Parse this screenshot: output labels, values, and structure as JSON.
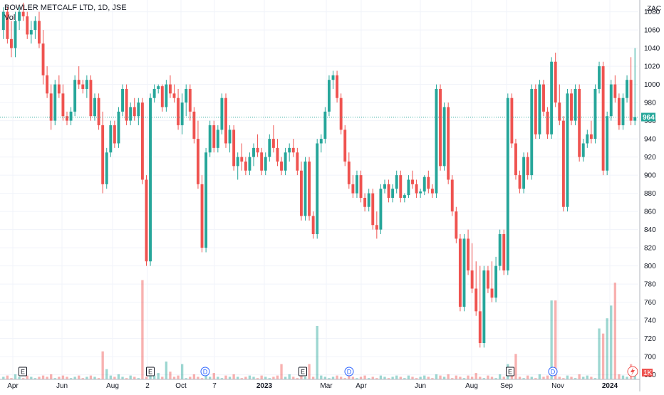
{
  "header": {
    "title": "BOWLER METCALF LTD, 1D, JSE",
    "volume_label": "Vol",
    "currency": "ZAC",
    "volume_scale": "1K"
  },
  "colors": {
    "up": "#26a69a",
    "down": "#ef5350",
    "grid": "#f0f3fa",
    "axis": "#b2b5be"
  },
  "chart_data": {
    "type": "candlestick",
    "title": "BOWLER METCALF LTD, 1D, JSE",
    "ylim": [
      675,
      1093
    ],
    "yticks": [
      680,
      700,
      720,
      740,
      760,
      780,
      800,
      820,
      840,
      860,
      880,
      900,
      920,
      940,
      960,
      980,
      1000,
      1020,
      1040,
      1060,
      1080
    ],
    "xticks": [
      {
        "label": "Apr",
        "bold": false
      },
      {
        "label": "Jun",
        "bold": false
      },
      {
        "label": "Aug",
        "bold": false
      },
      {
        "label": "2",
        "bold": false
      },
      {
        "label": "Oct",
        "bold": false
      },
      {
        "label": "7",
        "bold": false
      },
      {
        "label": "2023",
        "bold": true
      },
      {
        "label": "Mar",
        "bold": false
      },
      {
        "label": "Apr",
        "bold": false
      },
      {
        "label": "Jun",
        "bold": false
      },
      {
        "label": "Aug",
        "bold": false
      },
      {
        "label": "Sep",
        "bold": false
      },
      {
        "label": "Nov",
        "bold": false
      },
      {
        "label": "2024",
        "bold": true
      }
    ],
    "last_price": 964,
    "event_markers": [
      "E",
      "E",
      "D",
      "E",
      "D",
      "E",
      "D"
    ],
    "candles": [
      [
        1060,
        1085,
        1050,
        1080
      ],
      [
        1080,
        1085,
        1045,
        1050
      ],
      [
        1050,
        1070,
        1030,
        1040
      ],
      [
        1040,
        1080,
        1030,
        1070
      ],
      [
        1070,
        1085,
        1060,
        1080
      ],
      [
        1080,
        1090,
        1070,
        1075
      ],
      [
        1075,
        1080,
        1050,
        1055
      ],
      [
        1055,
        1070,
        1045,
        1060
      ],
      [
        1060,
        1075,
        1050,
        1070
      ],
      [
        1070,
        1080,
        1040,
        1045
      ],
      [
        1045,
        1060,
        1000,
        1010
      ],
      [
        1010,
        1020,
        985,
        990
      ],
      [
        990,
        1000,
        950,
        960
      ],
      [
        960,
        1005,
        955,
        1000
      ],
      [
        1000,
        1010,
        985,
        990
      ],
      [
        990,
        1000,
        960,
        965
      ],
      [
        965,
        970,
        955,
        960
      ],
      [
        960,
        975,
        955,
        970
      ],
      [
        970,
        1010,
        965,
        1005
      ],
      [
        1005,
        1020,
        995,
        1000
      ],
      [
        1000,
        1005,
        990,
        995
      ],
      [
        995,
        1010,
        985,
        1005
      ],
      [
        1005,
        1010,
        960,
        965
      ],
      [
        965,
        990,
        960,
        985
      ],
      [
        985,
        990,
        950,
        955
      ],
      [
        955,
        970,
        880,
        890
      ],
      [
        890,
        930,
        885,
        925
      ],
      [
        925,
        960,
        920,
        955
      ],
      [
        955,
        960,
        930,
        935
      ],
      [
        935,
        975,
        930,
        970
      ],
      [
        970,
        1000,
        965,
        995
      ],
      [
        995,
        1000,
        955,
        960
      ],
      [
        960,
        980,
        955,
        975
      ],
      [
        975,
        985,
        960,
        965
      ],
      [
        965,
        985,
        955,
        980
      ],
      [
        980,
        985,
        890,
        895
      ],
      [
        895,
        900,
        800,
        805
      ],
      [
        805,
        990,
        800,
        985
      ],
      [
        985,
        1000,
        980,
        995
      ],
      [
        995,
        1000,
        990,
        998
      ],
      [
        998,
        1000,
        970,
        975
      ],
      [
        975,
        1005,
        970,
        1000
      ],
      [
        1000,
        1010,
        985,
        990
      ],
      [
        990,
        1000,
        980,
        985
      ],
      [
        985,
        995,
        950,
        955
      ],
      [
        955,
        990,
        945,
        980
      ],
      [
        980,
        1000,
        965,
        995
      ],
      [
        995,
        1000,
        960,
        970
      ],
      [
        970,
        975,
        935,
        940
      ],
      [
        940,
        960,
        885,
        890
      ],
      [
        890,
        900,
        815,
        820
      ],
      [
        820,
        930,
        815,
        925
      ],
      [
        925,
        960,
        920,
        955
      ],
      [
        955,
        960,
        925,
        930
      ],
      [
        930,
        955,
        925,
        950
      ],
      [
        950,
        990,
        945,
        985
      ],
      [
        985,
        990,
        930,
        935
      ],
      [
        935,
        955,
        925,
        950
      ],
      [
        950,
        955,
        905,
        910
      ],
      [
        910,
        925,
        895,
        920
      ],
      [
        920,
        935,
        905,
        915
      ],
      [
        915,
        920,
        900,
        905
      ],
      [
        905,
        925,
        900,
        920
      ],
      [
        920,
        935,
        910,
        930
      ],
      [
        930,
        945,
        920,
        925
      ],
      [
        925,
        930,
        900,
        905
      ],
      [
        905,
        925,
        900,
        920
      ],
      [
        920,
        945,
        915,
        940
      ],
      [
        940,
        955,
        925,
        930
      ],
      [
        930,
        940,
        910,
        915
      ],
      [
        915,
        920,
        900,
        905
      ],
      [
        905,
        930,
        900,
        925
      ],
      [
        925,
        935,
        915,
        930
      ],
      [
        930,
        940,
        920,
        925
      ],
      [
        925,
        930,
        900,
        905
      ],
      [
        905,
        915,
        850,
        855
      ],
      [
        855,
        920,
        850,
        915
      ],
      [
        915,
        920,
        850,
        855
      ],
      [
        855,
        860,
        830,
        835
      ],
      [
        835,
        940,
        830,
        935
      ],
      [
        935,
        945,
        925,
        940
      ],
      [
        940,
        975,
        935,
        970
      ],
      [
        970,
        1010,
        965,
        1005
      ],
      [
        1005,
        1015,
        995,
        1010
      ],
      [
        1010,
        1015,
        980,
        985
      ],
      [
        985,
        990,
        945,
        950
      ],
      [
        950,
        955,
        910,
        915
      ],
      [
        915,
        925,
        885,
        890
      ],
      [
        890,
        900,
        875,
        880
      ],
      [
        880,
        905,
        875,
        900
      ],
      [
        900,
        905,
        870,
        875
      ],
      [
        875,
        880,
        860,
        865
      ],
      [
        865,
        885,
        860,
        880
      ],
      [
        880,
        885,
        840,
        845
      ],
      [
        845,
        860,
        830,
        840
      ],
      [
        840,
        890,
        835,
        885
      ],
      [
        885,
        895,
        880,
        890
      ],
      [
        890,
        895,
        870,
        875
      ],
      [
        875,
        890,
        870,
        885
      ],
      [
        885,
        905,
        880,
        900
      ],
      [
        900,
        905,
        870,
        875
      ],
      [
        875,
        880,
        870,
        878
      ],
      [
        878,
        900,
        875,
        895
      ],
      [
        895,
        905,
        885,
        890
      ],
      [
        890,
        895,
        875,
        880
      ],
      [
        880,
        885,
        875,
        882
      ],
      [
        882,
        900,
        878,
        898
      ],
      [
        898,
        905,
        880,
        885
      ],
      [
        885,
        890,
        875,
        880
      ],
      [
        880,
        1000,
        875,
        995
      ],
      [
        995,
        1000,
        905,
        910
      ],
      [
        910,
        980,
        905,
        975
      ],
      [
        975,
        980,
        890,
        895
      ],
      [
        895,
        900,
        855,
        860
      ],
      [
        860,
        865,
        825,
        830
      ],
      [
        830,
        835,
        750,
        755
      ],
      [
        755,
        835,
        750,
        830
      ],
      [
        830,
        840,
        790,
        795
      ],
      [
        795,
        825,
        770,
        775
      ],
      [
        775,
        805,
        745,
        750
      ],
      [
        750,
        800,
        710,
        715
      ],
      [
        715,
        800,
        710,
        795
      ],
      [
        795,
        800,
        770,
        775
      ],
      [
        775,
        805,
        760,
        765
      ],
      [
        765,
        810,
        760,
        800
      ],
      [
        800,
        840,
        795,
        835
      ],
      [
        835,
        840,
        790,
        795
      ],
      [
        795,
        990,
        790,
        985
      ],
      [
        985,
        990,
        930,
        935
      ],
      [
        935,
        940,
        895,
        900
      ],
      [
        900,
        905,
        880,
        885
      ],
      [
        885,
        925,
        880,
        920
      ],
      [
        920,
        925,
        895,
        900
      ],
      [
        900,
        1000,
        895,
        995
      ],
      [
        995,
        1000,
        940,
        945
      ],
      [
        945,
        1005,
        940,
        1000
      ],
      [
        1000,
        1005,
        965,
        970
      ],
      [
        970,
        975,
        940,
        945
      ],
      [
        945,
        1030,
        940,
        1025
      ],
      [
        1025,
        1035,
        975,
        980
      ],
      [
        980,
        1000,
        955,
        960
      ],
      [
        960,
        965,
        860,
        865
      ],
      [
        865,
        995,
        860,
        990
      ],
      [
        990,
        995,
        955,
        960
      ],
      [
        960,
        1000,
        955,
        995
      ],
      [
        995,
        1000,
        915,
        920
      ],
      [
        920,
        940,
        915,
        935
      ],
      [
        935,
        950,
        930,
        945
      ],
      [
        945,
        960,
        935,
        940
      ],
      [
        940,
        1000,
        935,
        995
      ],
      [
        995,
        1025,
        990,
        1020
      ],
      [
        1020,
        1025,
        900,
        905
      ],
      [
        905,
        970,
        900,
        965
      ],
      [
        965,
        1005,
        960,
        1000
      ],
      [
        1000,
        1010,
        980,
        985
      ],
      [
        985,
        990,
        950,
        955
      ],
      [
        955,
        990,
        950,
        985
      ],
      [
        985,
        1010,
        980,
        1005
      ],
      [
        1005,
        1030,
        955,
        960
      ],
      [
        960,
        1040,
        955,
        964
      ]
    ],
    "volumes": [
      2,
      3,
      1,
      4,
      2,
      1,
      3,
      2,
      1,
      2,
      3,
      2,
      4,
      1,
      2,
      3,
      2,
      1,
      2,
      3,
      1,
      2,
      3,
      2,
      1,
      22,
      8,
      3,
      2,
      4,
      2,
      1,
      3,
      2,
      1,
      78,
      2,
      8,
      3,
      5,
      2,
      14,
      6,
      2,
      3,
      12,
      1,
      2,
      4,
      2,
      1,
      3,
      2,
      5,
      2,
      1,
      3,
      2,
      4,
      2,
      1,
      2,
      3,
      2,
      1,
      3,
      2,
      1,
      2,
      3,
      12,
      2,
      4,
      2,
      1,
      3,
      2,
      12,
      2,
      42,
      3,
      2,
      1,
      2,
      3,
      2,
      1,
      3,
      2,
      1,
      2,
      3,
      1,
      2,
      1,
      3,
      2,
      1,
      2,
      3,
      2,
      1,
      3,
      2,
      1,
      2,
      3,
      2,
      1,
      4,
      3,
      2,
      4,
      1,
      3,
      2,
      1,
      3,
      2,
      5,
      2,
      1,
      3,
      2,
      1,
      4,
      2,
      12,
      3,
      20,
      2,
      1,
      3,
      2,
      1,
      4,
      2,
      3,
      62,
      62,
      2,
      1,
      3,
      2,
      1,
      4,
      2,
      3,
      2,
      1,
      40,
      36,
      48,
      58,
      76,
      4,
      3,
      2,
      12,
      6
    ]
  }
}
